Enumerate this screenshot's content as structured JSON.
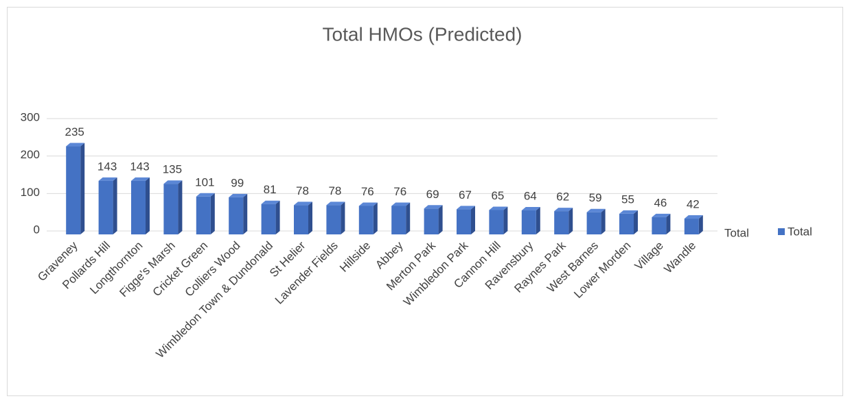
{
  "chart_data": {
    "type": "bar3d",
    "title": "Total HMOs (Predicted)",
    "x_label": "Total",
    "categories": [
      "Graveney",
      "Pollards Hill",
      "Longthornton",
      "Figge's Marsh",
      "Cricket Green",
      "Colliers Wood",
      "Wimbledon Town & Dundonald",
      "St Helier",
      "Lavender Fields",
      "Hillside",
      "Abbey",
      "Merton Park",
      "Wimbledon Park",
      "Cannon Hill",
      "Ravensbury",
      "Raynes Park",
      "West Barnes",
      "Lower Morden",
      "Village",
      "Wandle"
    ],
    "series": [
      {
        "name": "Total",
        "color": "#4472c4",
        "values": [
          235,
          143,
          143,
          135,
          101,
          99,
          81,
          78,
          78,
          76,
          76,
          69,
          67,
          65,
          64,
          62,
          59,
          55,
          46,
          42
        ]
      }
    ],
    "ylim": [
      0,
      300
    ],
    "yticks": [
      0,
      100,
      200,
      300
    ],
    "grid": true,
    "legend": "right"
  }
}
